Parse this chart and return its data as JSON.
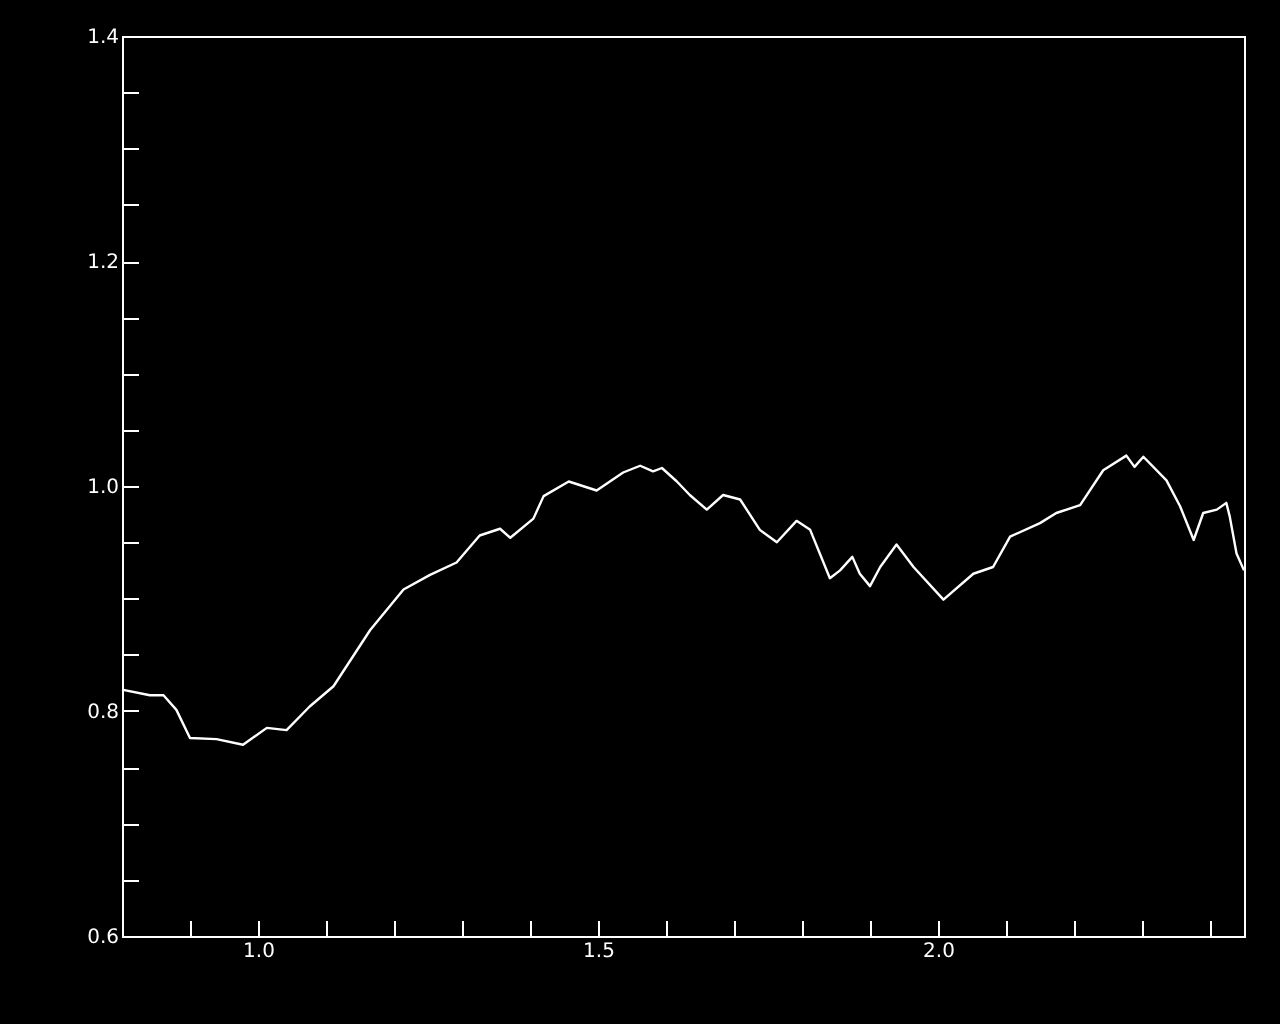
{
  "chart_data": {
    "type": "line",
    "color": "#ffffff",
    "line_style": "solid",
    "marker": "none",
    "grid": false,
    "x": [
      0.8,
      0.841,
      0.861,
      0.88,
      0.9,
      0.939,
      0.978,
      1.013,
      1.042,
      1.076,
      1.111,
      1.165,
      1.214,
      1.253,
      1.292,
      1.326,
      1.356,
      1.371,
      1.405,
      1.42,
      1.457,
      1.498,
      1.537,
      1.562,
      1.581,
      1.594,
      1.616,
      1.635,
      1.66,
      1.684,
      1.709,
      1.738,
      1.763,
      1.792,
      1.812,
      1.841,
      1.856,
      1.874,
      1.885,
      1.9,
      1.915,
      1.939,
      1.964,
      2.008,
      2.052,
      2.081,
      2.106,
      2.15,
      2.174,
      2.209,
      2.243,
      2.277,
      2.289,
      2.302,
      2.336,
      2.356,
      2.376,
      2.39,
      2.41,
      2.424,
      2.429,
      2.439,
      2.45
    ],
    "values": [
      0.819,
      0.814,
      0.814,
      0.801,
      0.776,
      0.775,
      0.77,
      0.785,
      0.783,
      0.804,
      0.822,
      0.872,
      0.908,
      0.921,
      0.932,
      0.956,
      0.962,
      0.954,
      0.971,
      0.991,
      1.004,
      0.996,
      1.012,
      1.018,
      1.013,
      1.016,
      1.004,
      0.992,
      0.979,
      0.992,
      0.988,
      0.961,
      0.95,
      0.969,
      0.961,
      0.918,
      0.925,
      0.937,
      0.922,
      0.911,
      0.928,
      0.948,
      0.928,
      0.899,
      0.922,
      0.928,
      0.955,
      0.967,
      0.976,
      0.983,
      1.014,
      1.027,
      1.017,
      1.026,
      1.005,
      0.982,
      0.952,
      0.976,
      0.979,
      0.985,
      0.973,
      0.94,
      0.925
    ],
    "xlim": [
      0.8,
      2.45
    ],
    "xticks": [
      {
        "value": 0.9,
        "label": null
      },
      {
        "value": 1.0,
        "label": "1.0"
      },
      {
        "value": 1.1,
        "label": null
      },
      {
        "value": 1.2,
        "label": null
      },
      {
        "value": 1.3,
        "label": null
      },
      {
        "value": 1.4,
        "label": null
      },
      1.5,
      {
        "value": 1.6,
        "label": null
      },
      {
        "value": 1.7,
        "label": null
      },
      {
        "value": 1.8,
        "label": null
      },
      {
        "value": 1.9,
        "label": null
      },
      {
        "value": 2.0,
        "label": "2.0"
      },
      {
        "value": 2.1,
        "label": null
      },
      {
        "value": 2.2,
        "label": null
      },
      {
        "value": 2.3,
        "label": null
      },
      {
        "value": 2.4,
        "label": null
      }
    ],
    "ylim": [
      0.6,
      1.4
    ],
    "yticks": [
      0.6,
      {
        "value": 0.65,
        "label": null
      },
      {
        "value": 0.7,
        "label": null
      },
      {
        "value": 0.75,
        "label": null
      },
      0.8,
      {
        "value": 0.85,
        "label": null
      },
      {
        "value": 0.9,
        "label": null
      },
      {
        "value": 0.95,
        "label": null
      },
      {
        "value": 1.0,
        "label": "1.0"
      },
      {
        "value": 1.05,
        "label": null
      },
      {
        "value": 1.1,
        "label": null
      },
      {
        "value": 1.15,
        "label": null
      },
      1.2,
      {
        "value": 1.25,
        "label": null
      },
      {
        "value": 1.3,
        "label": null
      },
      {
        "value": 1.35,
        "label": null
      },
      1.4
    ]
  }
}
